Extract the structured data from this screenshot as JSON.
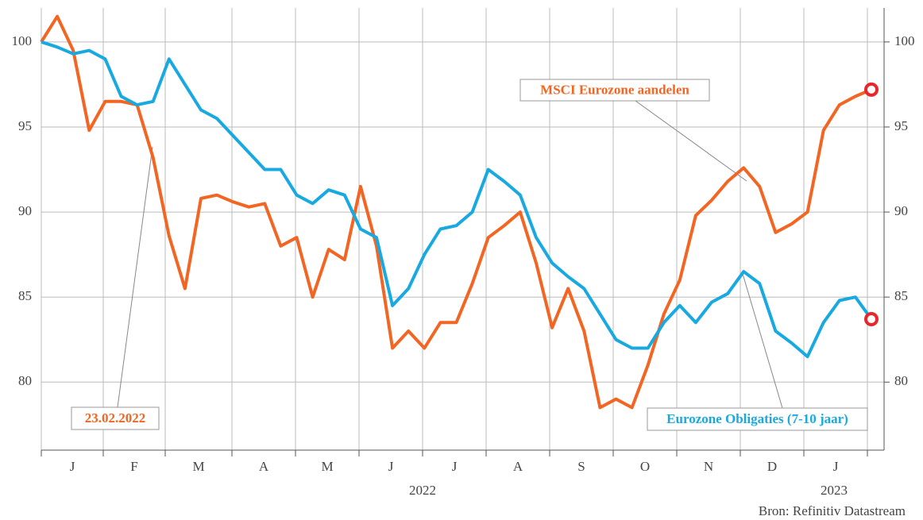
{
  "chart_data": {
    "type": "line",
    "xtick_labels": [
      "J",
      "F",
      "M",
      "A",
      "M",
      "J",
      "J",
      "A",
      "S",
      "O",
      "N",
      "D",
      "J"
    ],
    "years": [
      "2022",
      "2023"
    ],
    "ylim": [
      76,
      102
    ],
    "yticks": [
      80,
      85,
      90,
      95,
      100
    ],
    "grid": true,
    "series": [
      {
        "name": "MSCI Eurozone aandelen",
        "color": "#f26522",
        "values": [
          100,
          101.5,
          99.5,
          94.8,
          96.5,
          96.5,
          96.3,
          93.2,
          88.6,
          85.5,
          90.8,
          91,
          90.6,
          90.3,
          90.5,
          88,
          88.5,
          85,
          87.8,
          87.2,
          91.5,
          88,
          82,
          83,
          82,
          83.5,
          83.5,
          85.8,
          88.5,
          89.2,
          90,
          87,
          83.2,
          85.5,
          83,
          78.5,
          79,
          78.5,
          81,
          84,
          86,
          89.8,
          90.7,
          91.8,
          92.6,
          91.5,
          88.8,
          89.3,
          90,
          94.8,
          96.3,
          96.8,
          97.2
        ]
      },
      {
        "name": "Eurozone Obligaties (7-10 jaar)",
        "color": "#19a9e1",
        "values": [
          100,
          99.7,
          99.3,
          99.5,
          99,
          96.8,
          96.3,
          96.5,
          99,
          97.5,
          96,
          95.5,
          94.5,
          93.5,
          92.5,
          92.5,
          91,
          90.5,
          91.3,
          91,
          89,
          88.5,
          84.5,
          85.5,
          87.5,
          89,
          89.2,
          90,
          92.5,
          91.8,
          91,
          88.5,
          87,
          86.2,
          85.5,
          84,
          82.5,
          82,
          82,
          83.5,
          84.5,
          83.5,
          84.7,
          85.2,
          86.5,
          85.8,
          83,
          82.3,
          81.5,
          83.5,
          84.8,
          85,
          83.7
        ]
      }
    ],
    "annotations": [
      "23.02.2022"
    ],
    "source": "Bron: Refinitiv Datastream"
  }
}
